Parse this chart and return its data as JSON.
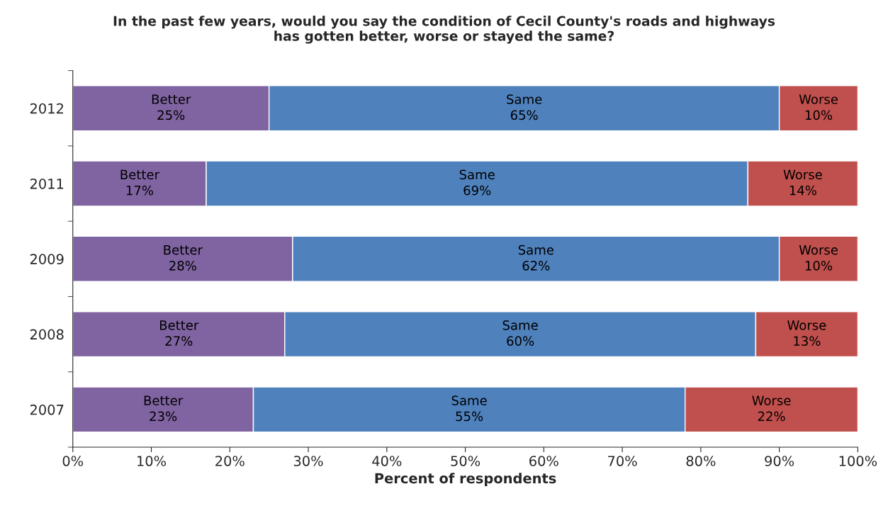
{
  "chart_data": {
    "type": "bar",
    "orientation": "horizontal",
    "stacked": true,
    "title": "In the past few years, would you say the condition of Cecil County's roads and highways\nhas gotten better, worse or stayed the same?",
    "xlabel": "Percent of respondents",
    "categories": [
      "2012",
      "2011",
      "2009",
      "2008",
      "2007"
    ],
    "series": [
      {
        "name": "Better",
        "color": "#8064a2",
        "values": [
          25,
          17,
          28,
          27,
          23
        ],
        "value_labels": [
          "25%",
          "17%",
          "28%",
          "27%",
          "23%"
        ]
      },
      {
        "name": "Same",
        "color": "#4f81bd",
        "values": [
          65,
          69,
          62,
          60,
          55
        ],
        "value_labels": [
          "65%",
          "69%",
          "62%",
          "60%",
          "55%"
        ]
      },
      {
        "name": "Worse",
        "color": "#c0504d",
        "values": [
          10,
          14,
          10,
          13,
          22
        ],
        "value_labels": [
          "10%",
          "14%",
          "10%",
          "13%",
          "22%"
        ]
      }
    ],
    "xlim": [
      0,
      100
    ],
    "xticks": [
      {
        "value": 0,
        "label": "0%"
      },
      {
        "value": 10,
        "label": "10%"
      },
      {
        "value": 20,
        "label": "20%"
      },
      {
        "value": 30,
        "label": "30%"
      },
      {
        "value": 40,
        "label": "40%"
      },
      {
        "value": 50,
        "label": "50%"
      },
      {
        "value": 60,
        "label": "60%"
      },
      {
        "value": 70,
        "label": "70%"
      },
      {
        "value": 80,
        "label": "80%"
      },
      {
        "value": 90,
        "label": "90%"
      },
      {
        "value": 100,
        "label": "100%"
      }
    ],
    "grid": false,
    "legend": false
  }
}
